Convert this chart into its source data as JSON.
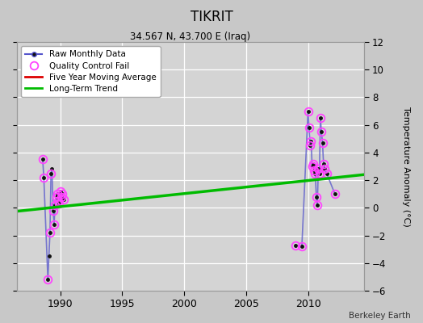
{
  "title": "TIKRIT",
  "subtitle": "34.567 N, 43.700 E (Iraq)",
  "ylabel": "Temperature Anomaly (°C)",
  "credit": "Berkeley Earth",
  "xlim": [
    1986.5,
    2014.5
  ],
  "ylim": [
    -6,
    12
  ],
  "yticks": [
    -6,
    -4,
    -2,
    0,
    2,
    4,
    6,
    8,
    10,
    12
  ],
  "xticks": [
    1990,
    1995,
    2000,
    2005,
    2010
  ],
  "fig_bg": "#c8c8c8",
  "plot_bg": "#d4d4d4",
  "seg1_x": [
    1988.58,
    1988.67,
    1989.0,
    1989.08,
    1989.17,
    1989.25,
    1989.33,
    1989.42,
    1989.5,
    1989.58,
    1989.67,
    1989.75,
    1989.83,
    1989.92,
    1990.0,
    1990.08,
    1990.17,
    1990.25
  ],
  "seg1_y": [
    3.5,
    2.2,
    -5.2,
    -3.5,
    -1.8,
    2.5,
    2.8,
    -0.2,
    -1.2,
    0.2,
    0.8,
    1.0,
    0.5,
    0.3,
    1.2,
    0.8,
    1.0,
    0.6
  ],
  "seg2_x": [
    2009.0,
    2009.5,
    2010.0,
    2010.08,
    2010.17,
    2010.25,
    2010.33,
    2010.42,
    2010.5,
    2010.58,
    2010.67,
    2010.75,
    2010.83,
    2010.92,
    2011.0,
    2011.08,
    2011.17,
    2011.25,
    2011.33,
    2011.5,
    2012.17
  ],
  "seg2_y": [
    -2.7,
    -2.8,
    7.0,
    5.8,
    4.5,
    4.8,
    3.0,
    3.2,
    2.7,
    2.5,
    0.8,
    0.2,
    2.8,
    2.5,
    6.5,
    5.5,
    4.7,
    3.2,
    2.8,
    2.5,
    1.0
  ],
  "qc1_x": [
    1988.58,
    1988.67,
    1989.0,
    1989.17,
    1989.25,
    1989.42,
    1989.5,
    1989.58,
    1989.67,
    1989.75,
    1989.83,
    1989.92,
    1990.0,
    1990.08,
    1990.17,
    1990.25
  ],
  "qc1_y": [
    3.5,
    2.2,
    -5.2,
    -1.8,
    2.5,
    -0.2,
    -1.2,
    0.2,
    0.8,
    1.0,
    0.5,
    0.3,
    1.2,
    0.8,
    1.0,
    0.6
  ],
  "qc2_x": [
    2009.0,
    2009.5,
    2010.0,
    2010.08,
    2010.17,
    2010.25,
    2010.33,
    2010.42,
    2010.5,
    2010.58,
    2010.67,
    2010.75,
    2010.83,
    2010.92,
    2011.0,
    2011.08,
    2011.17,
    2011.25,
    2011.33,
    2011.5,
    2012.17
  ],
  "qc2_y": [
    -2.7,
    -2.8,
    7.0,
    5.8,
    4.5,
    4.8,
    3.0,
    3.2,
    2.7,
    2.5,
    0.8,
    0.2,
    2.8,
    2.5,
    6.5,
    5.5,
    4.7,
    3.2,
    2.8,
    2.5,
    1.0
  ],
  "trend_x": [
    1986.5,
    2014.5
  ],
  "trend_y": [
    -0.25,
    2.4
  ],
  "raw_line_color": "#5555cc",
  "raw_dot_color": "#111111",
  "qc_color": "#ff44ff",
  "moving_avg_color": "#dd0000",
  "trend_color": "#00bb00"
}
